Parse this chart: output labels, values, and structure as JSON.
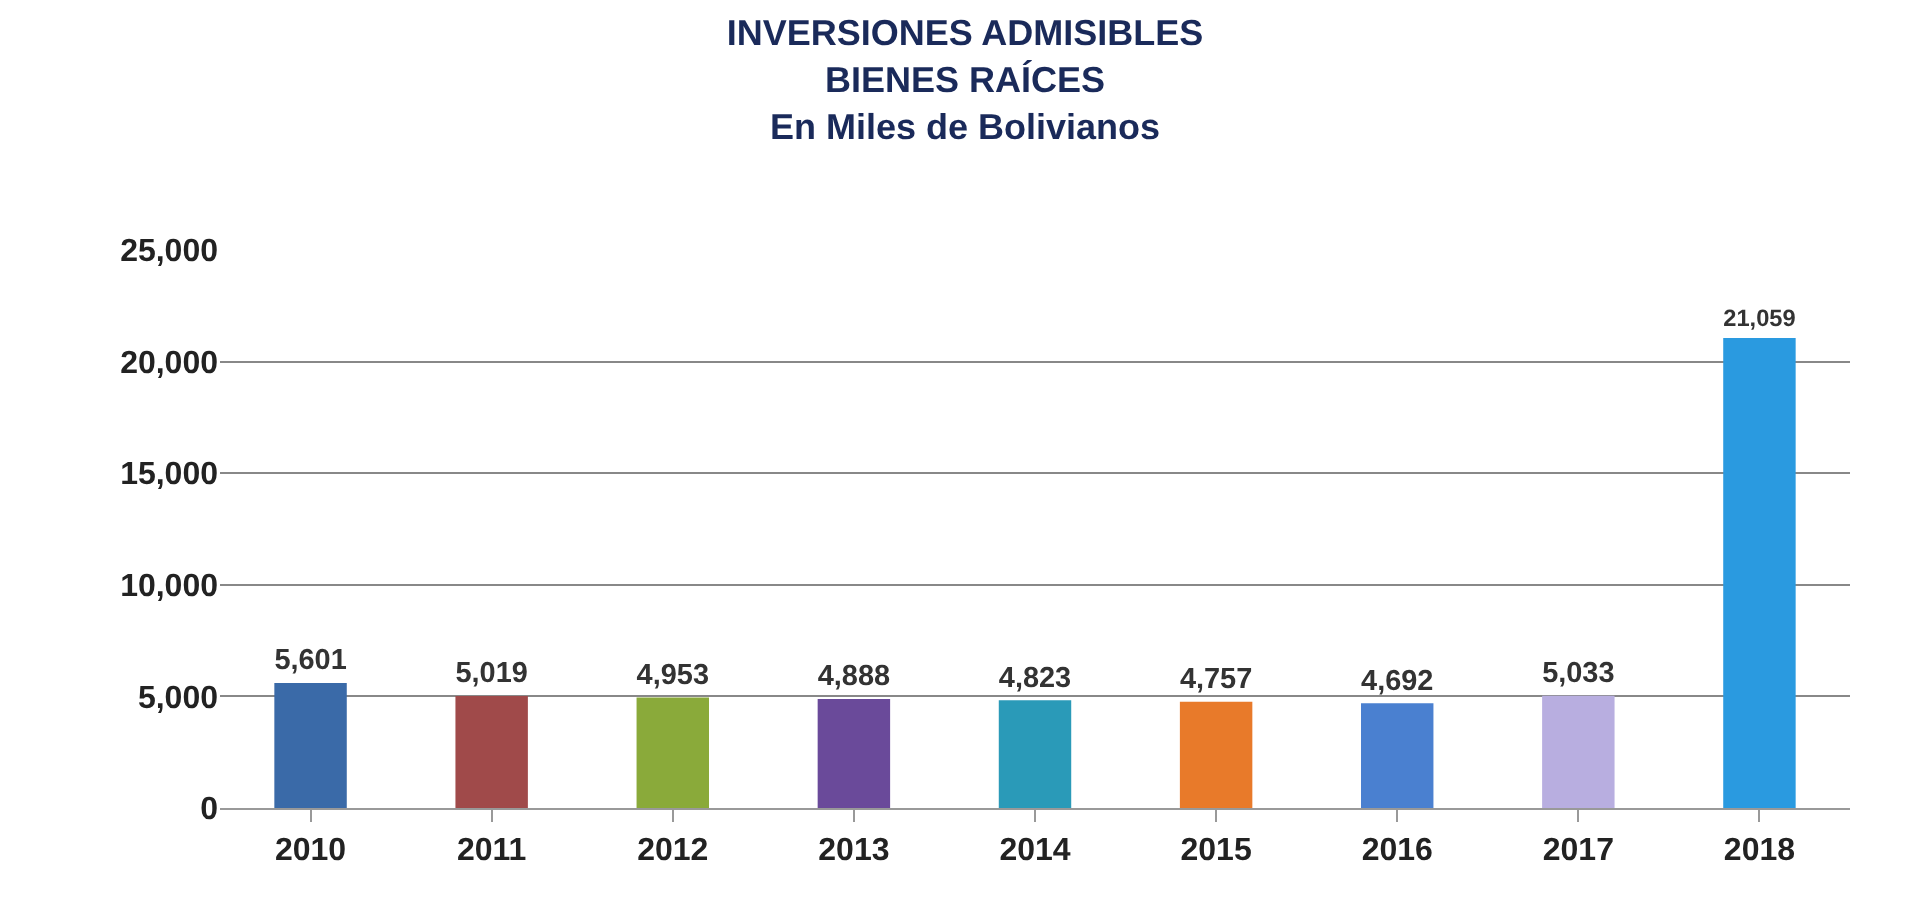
{
  "chart_data": {
    "type": "bar",
    "title": "INVERSIONES ADMISIBLES\nBIENES RAÍCES\nEn Miles de Bolivianos",
    "categories": [
      "2010",
      "2011",
      "2012",
      "2013",
      "2014",
      "2015",
      "2016",
      "2017",
      "2018"
    ],
    "values": [
      5601,
      5019,
      4953,
      4888,
      4823,
      4757,
      4692,
      5033,
      21059
    ],
    "colors": [
      "#3a6aa8",
      "#a04a4a",
      "#8aaa3a",
      "#6a4a9a",
      "#2a9ab8",
      "#e87a2a",
      "#4a80d0",
      "#b8aee0",
      "#2a9ae0"
    ],
    "value_labels": [
      "5,601",
      "5,019",
      "4,953",
      "4,888",
      "4,823",
      "4,757",
      "4,692",
      "5,033",
      "21,059"
    ],
    "ylim": [
      0,
      25000
    ],
    "yticks": [
      {
        "value": 0,
        "label": "0"
      },
      {
        "value": 5000,
        "label": "5,000"
      },
      {
        "value": 10000,
        "label": "10,000"
      },
      {
        "value": 15000,
        "label": "15,000"
      },
      {
        "value": 20000,
        "label": "20,000"
      },
      {
        "value": 25000,
        "label": "25,000"
      }
    ],
    "grid": "y"
  }
}
